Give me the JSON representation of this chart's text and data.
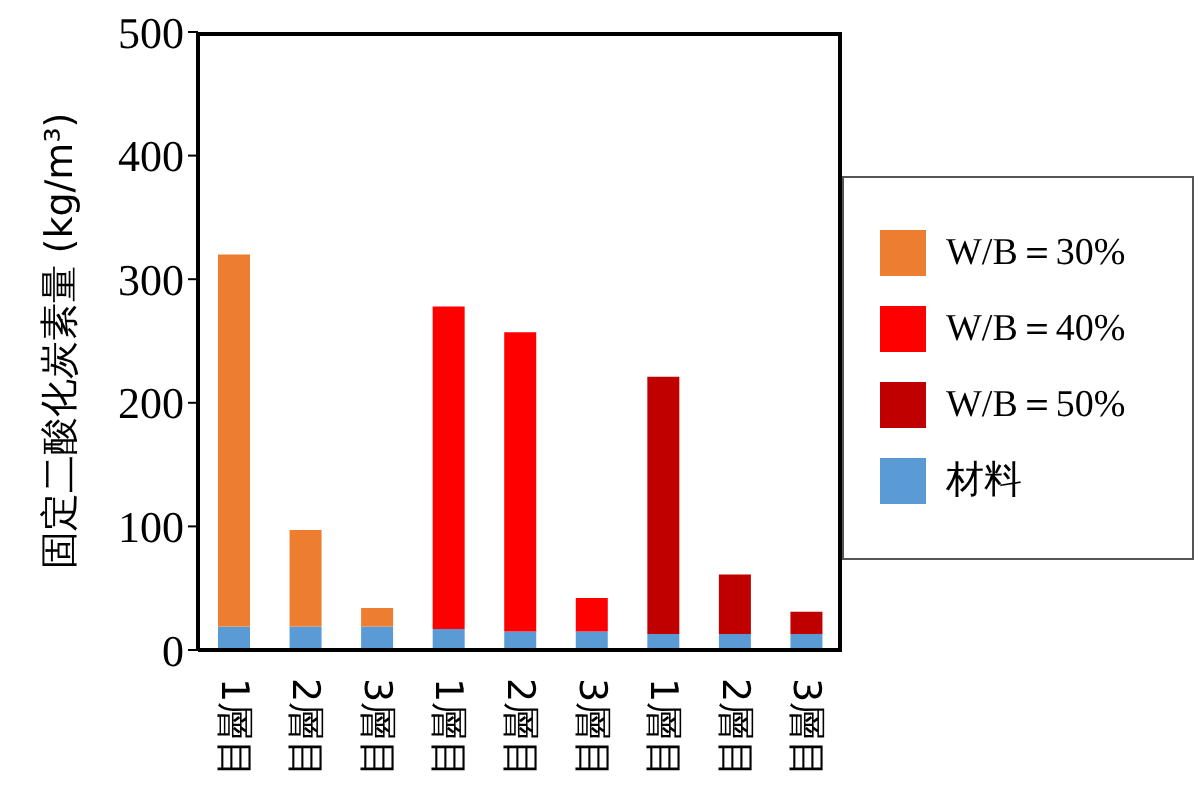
{
  "chart_data": {
    "type": "bar",
    "stacked": true,
    "ylabel": "固定二酸化炭素量 (kg/m³)",
    "categories": [
      "1層目",
      "2層目",
      "3層目",
      "1層目",
      "2層目",
      "3層目",
      "1層目",
      "2層目",
      "3層目"
    ],
    "series": [
      {
        "name": "材料",
        "color": "#5b9bd5",
        "values": [
          19,
          19,
          19,
          17,
          15,
          15,
          13,
          13,
          13
        ]
      },
      {
        "name": "W/B＝30%",
        "color": "#ed7d31",
        "values": [
          301,
          78,
          15,
          null,
          null,
          null,
          null,
          null,
          null
        ]
      },
      {
        "name": "W/B＝40%",
        "color": "#ff0000",
        "values": [
          null,
          null,
          null,
          261,
          242,
          27,
          null,
          null,
          null
        ]
      },
      {
        "name": "W/B＝50%",
        "color": "#c00000",
        "values": [
          null,
          null,
          null,
          null,
          null,
          null,
          208,
          48,
          18
        ]
      }
    ],
    "ylim": [
      0,
      500
    ],
    "yticks": [
      0,
      100,
      200,
      300,
      400,
      500
    ],
    "grid": false,
    "legend": "right"
  }
}
